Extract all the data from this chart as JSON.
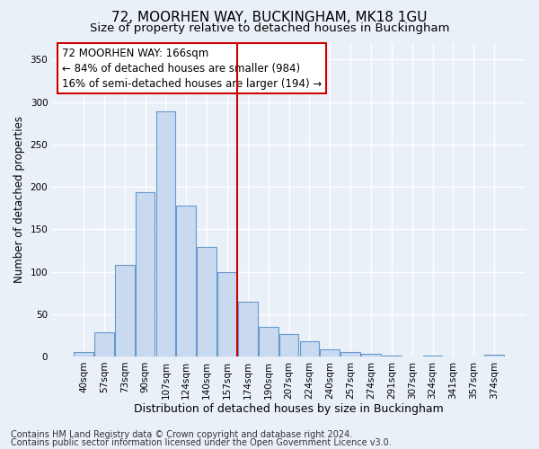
{
  "title": "72, MOORHEN WAY, BUCKINGHAM, MK18 1GU",
  "subtitle": "Size of property relative to detached houses in Buckingham",
  "xlabel": "Distribution of detached houses by size in Buckingham",
  "ylabel": "Number of detached properties",
  "footer1": "Contains HM Land Registry data © Crown copyright and database right 2024.",
  "footer2": "Contains public sector information licensed under the Open Government Licence v3.0.",
  "categories": [
    "40sqm",
    "57sqm",
    "73sqm",
    "90sqm",
    "107sqm",
    "124sqm",
    "140sqm",
    "157sqm",
    "174sqm",
    "190sqm",
    "207sqm",
    "224sqm",
    "240sqm",
    "257sqm",
    "274sqm",
    "291sqm",
    "307sqm",
    "324sqm",
    "341sqm",
    "357sqm",
    "374sqm"
  ],
  "values": [
    5,
    29,
    108,
    194,
    289,
    178,
    129,
    100,
    65,
    35,
    26,
    18,
    8,
    5,
    3,
    1,
    0,
    1,
    0,
    0,
    2
  ],
  "bar_color": "#c9d9f0",
  "bar_edge_color": "#6699cc",
  "vline_x": 7.5,
  "vline_color": "#cc0000",
  "annotation_line1": "72 MOORHEN WAY: 166sqm",
  "annotation_line2": "← 84% of detached houses are smaller (984)",
  "annotation_line3": "16% of semi-detached houses are larger (194) →",
  "annotation_box_color": "#ffffff",
  "annotation_box_edge_color": "#cc0000",
  "ylim": [
    0,
    370
  ],
  "yticks": [
    0,
    50,
    100,
    150,
    200,
    250,
    300,
    350
  ],
  "bg_color": "#eaf0f8",
  "plot_bg_color": "#eaf0f8",
  "grid_color": "#ffffff",
  "title_fontsize": 11,
  "subtitle_fontsize": 9.5,
  "tick_fontsize": 7.5,
  "ylabel_fontsize": 8.5,
  "xlabel_fontsize": 9,
  "footer_fontsize": 7,
  "annotation_fontsize": 8.5
}
